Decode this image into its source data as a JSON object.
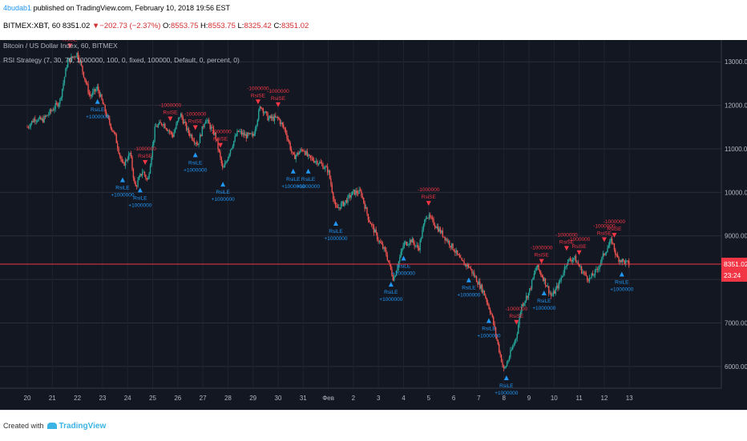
{
  "header": {
    "author": "4budab1",
    "published": "published on TradingView.com, February 10, 2018 19:56 EST",
    "symbol": "BITMEX:XBT, 60",
    "last": "8351.02",
    "change": "▼−202.73 (−2.37%)",
    "o_label": "O:",
    "o_value": "8553.75",
    "h_label": "H:",
    "h_value": "8553.75",
    "l_label": "L:",
    "l_value": "8325.42",
    "c_label": "C:",
    "c_value": "8351.02"
  },
  "legend": {
    "title": "Bitcoin / US Dollar Index, 60, BITMEX",
    "strategy": "RSI Strategy (7, 30, 70, 1000000, 100, 0, fixed, 100000, Default, 0, percent, 0)"
  },
  "footer": {
    "created_with": "Created with",
    "brand": "TradingView"
  },
  "chart_data": {
    "type": "candlestick",
    "ylim": [
      5500,
      13500
    ],
    "yticks": [
      "13000.00",
      "12000.00",
      "11000.00",
      "10000.00",
      "9000.00",
      "8000.00",
      "7000.00",
      "6000.00"
    ],
    "ytick_values": [
      13000,
      12000,
      11000,
      10000,
      9000,
      8000,
      7000,
      6000
    ],
    "xticks": [
      "20",
      "21",
      "22",
      "23",
      "24",
      "25",
      "26",
      "27",
      "28",
      "29",
      "30",
      "31",
      "Фев",
      "2",
      "3",
      "4",
      "5",
      "6",
      "7",
      "8",
      "9",
      "10",
      "11",
      "12",
      "13"
    ],
    "price_label": "8351.02",
    "countdown_label": "23:24",
    "colors": {
      "up": "#26a69a",
      "down": "#ef5350",
      "buy": "#2196f3",
      "sell": "#f23645",
      "background": "#131722",
      "price_line": "#f23645"
    },
    "path": [
      [
        0,
        11500
      ],
      [
        0.3,
        11700
      ],
      [
        0.6,
        11650
      ],
      [
        1.0,
        11900
      ],
      [
        1.3,
        12100
      ],
      [
        1.6,
        13000
      ],
      [
        2.0,
        13200
      ],
      [
        2.2,
        12800
      ],
      [
        2.5,
        12200
      ],
      [
        2.8,
        12400
      ],
      [
        3.2,
        11700
      ],
      [
        3.5,
        11300
      ],
      [
        3.8,
        10600
      ],
      [
        4.1,
        10900
      ],
      [
        4.3,
        10100
      ],
      [
        4.6,
        10500
      ],
      [
        4.8,
        10250
      ],
      [
        5.1,
        11500
      ],
      [
        5.4,
        11600
      ],
      [
        5.8,
        11300
      ],
      [
        6.1,
        11800
      ],
      [
        6.4,
        11400
      ],
      [
        6.8,
        11100
      ],
      [
        7.1,
        11700
      ],
      [
        7.5,
        11300
      ],
      [
        7.8,
        10500
      ],
      [
        8.1,
        11000
      ],
      [
        8.4,
        11400
      ],
      [
        8.7,
        11300
      ],
      [
        9.0,
        11300
      ],
      [
        9.3,
        12000
      ],
      [
        9.6,
        11700
      ],
      [
        10.0,
        11700
      ],
      [
        10.3,
        11400
      ],
      [
        10.6,
        10800
      ],
      [
        11.0,
        11000
      ],
      [
        11.2,
        10800
      ],
      [
        11.6,
        10700
      ],
      [
        12.0,
        10500
      ],
      [
        12.3,
        9600
      ],
      [
        12.7,
        9800
      ],
      [
        13.0,
        10000
      ],
      [
        13.3,
        10000
      ],
      [
        13.6,
        9400
      ],
      [
        14.0,
        8900
      ],
      [
        14.3,
        8600
      ],
      [
        14.6,
        8000
      ],
      [
        15.0,
        8800
      ],
      [
        15.3,
        8900
      ],
      [
        15.6,
        8700
      ],
      [
        15.9,
        9500
      ],
      [
        16.2,
        9300
      ],
      [
        16.6,
        9000
      ],
      [
        17.0,
        8700
      ],
      [
        17.3,
        8400
      ],
      [
        17.6,
        8300
      ],
      [
        17.9,
        8000
      ],
      [
        18.2,
        7700
      ],
      [
        18.5,
        7200
      ],
      [
        18.8,
        6400
      ],
      [
        19.0,
        5900
      ],
      [
        19.2,
        6200
      ],
      [
        19.5,
        6700
      ],
      [
        19.7,
        7400
      ],
      [
        20.0,
        7700
      ],
      [
        20.3,
        8300
      ],
      [
        20.6,
        8000
      ],
      [
        20.9,
        7600
      ],
      [
        21.2,
        7900
      ],
      [
        21.5,
        8400
      ],
      [
        21.8,
        8500
      ],
      [
        22.1,
        8200
      ],
      [
        22.4,
        8000
      ],
      [
        22.7,
        8200
      ],
      [
        23.0,
        8600
      ],
      [
        23.3,
        8900
      ],
      [
        23.5,
        8500
      ],
      [
        23.8,
        8400
      ],
      [
        24.0,
        8350
      ]
    ],
    "sell_signals": [
      {
        "day": 1.7,
        "label": "RsiSE",
        "qty": "-1000000"
      },
      {
        "day": 4.7,
        "label": "RsiSE",
        "qty": "-1000000"
      },
      {
        "day": 5.7,
        "label": "RsiSE",
        "qty": "-1000000"
      },
      {
        "day": 6.7,
        "label": "RsiSE",
        "qty": "-1000000"
      },
      {
        "day": 7.7,
        "label": "RsiSE",
        "qty": "-1000000"
      },
      {
        "day": 9.2,
        "label": "RsiSE",
        "qty": "-1000000"
      },
      {
        "day": 10.0,
        "label": "RsiSE",
        "qty": "-1000000"
      },
      {
        "day": 16.0,
        "label": "RsiSE",
        "qty": "-1000000"
      },
      {
        "day": 19.5,
        "label": "RsiSE",
        "qty": "-1000000"
      },
      {
        "day": 20.5,
        "label": "RsiSE",
        "qty": "-1000000"
      },
      {
        "day": 21.5,
        "label": "RsiSE",
        "qty": "-1000000"
      },
      {
        "day": 22.0,
        "label": "RsiSE",
        "qty": "-1000000"
      },
      {
        "day": 23.0,
        "label": "RsiSE",
        "qty": "-1000000"
      },
      {
        "day": 23.4,
        "label": "RsiSE",
        "qty": "-1000000"
      }
    ],
    "buy_signals": [
      {
        "day": 2.8,
        "label": "RsiLE",
        "qty": "+1000000"
      },
      {
        "day": 3.8,
        "label": "RsiLE",
        "qty": "+1000000"
      },
      {
        "day": 4.5,
        "label": "RsiLE",
        "qty": "+1000000"
      },
      {
        "day": 6.7,
        "label": "RsiLE",
        "qty": "+1000000"
      },
      {
        "day": 7.8,
        "label": "RsiLE",
        "qty": "+1000000"
      },
      {
        "day": 10.6,
        "label": "RsiLE",
        "qty": "+1000000"
      },
      {
        "day": 11.2,
        "label": "RsiLE",
        "qty": "+1000000"
      },
      {
        "day": 12.3,
        "label": "RsiLE",
        "qty": "+1000000"
      },
      {
        "day": 14.5,
        "label": "RsiLE",
        "qty": "+1000000"
      },
      {
        "day": 15.0,
        "label": "RsiLE",
        "qty": "+1000000"
      },
      {
        "day": 17.6,
        "label": "RsiLE",
        "qty": "+1000000"
      },
      {
        "day": 18.4,
        "label": "RsiLE",
        "qty": "+1000000"
      },
      {
        "day": 19.1,
        "label": "RsiLE",
        "qty": "+1000000"
      },
      {
        "day": 20.6,
        "label": "RsiLE",
        "qty": "+1000000"
      },
      {
        "day": 23.7,
        "label": "RsiLE",
        "qty": "+1000000"
      }
    ]
  }
}
